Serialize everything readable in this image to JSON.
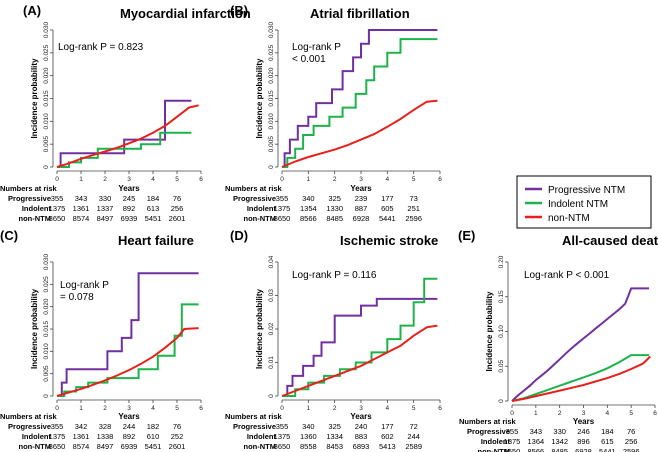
{
  "legend": {
    "entries": [
      {
        "name": "Progressive NTM",
        "color": "#7030a0"
      },
      {
        "name": "Indolent NTM",
        "color": "#1db34a"
      },
      {
        "name": "non-NTM",
        "color": "#e8201c"
      }
    ]
  },
  "risk_table": {
    "header": "Numbers at risk",
    "years_label": "Years",
    "groups": [
      "Progressive",
      "Indolent",
      "non-NTM"
    ]
  },
  "chart_data": [
    {
      "type": "line",
      "panel_label": "(A)",
      "title": "Myocardial infarction",
      "xlabel": "Years",
      "ylabel": "Incidence probability",
      "annotation": "Log-rank P = 0.823",
      "xlim": [
        0,
        6
      ],
      "ylim": [
        0,
        0.03
      ],
      "xticks": [
        "0",
        "1",
        "2",
        "3",
        "4",
        "5",
        "6"
      ],
      "yticks": [
        "0",
        "0.005",
        "0.010",
        "0.015",
        "0.020",
        "0.025",
        "0.030"
      ],
      "series": [
        {
          "name": "Progressive NTM",
          "x": [
            0,
            0.15,
            0.15,
            2.8,
            2.8,
            4.5,
            4.5,
            5.6
          ],
          "y": [
            0,
            0,
            0.003,
            0.003,
            0.006,
            0.006,
            0.0145,
            0.0145
          ]
        },
        {
          "name": "Indolent NTM",
          "x": [
            0,
            0.5,
            0.5,
            1.0,
            1.0,
            1.7,
            1.7,
            3.5,
            3.5,
            4.3,
            4.3,
            5.6
          ],
          "y": [
            0,
            0,
            0.001,
            0.001,
            0.002,
            0.002,
            0.004,
            0.004,
            0.005,
            0.005,
            0.0075,
            0.0075
          ]
        },
        {
          "name": "non-NTM",
          "x": [
            0,
            0.5,
            1,
            1.5,
            2,
            2.5,
            3,
            3.5,
            4,
            4.5,
            5,
            5.5,
            5.9
          ],
          "y": [
            0,
            0.0008,
            0.0018,
            0.0026,
            0.0034,
            0.0042,
            0.0052,
            0.0062,
            0.0075,
            0.009,
            0.011,
            0.013,
            0.0135
          ]
        }
      ],
      "risk": {
        "years": [
          "0",
          "1",
          "2",
          "3",
          "4",
          "5"
        ],
        "rows": [
          [
            "355",
            "343",
            "330",
            "245",
            "184",
            "76"
          ],
          [
            "1375",
            "1361",
            "1337",
            "892",
            "613",
            "256"
          ],
          [
            "8650",
            "8574",
            "8497",
            "6939",
            "5451",
            "2601"
          ]
        ]
      }
    },
    {
      "type": "line",
      "panel_label": "(B)",
      "title": "Atrial fibrillation",
      "xlabel": "Years",
      "ylabel": "Incidence probability",
      "annotation": "Log-rank P\n< 0.001",
      "xlim": [
        0,
        6
      ],
      "ylim": [
        0,
        0.03
      ],
      "xticks": [
        "0",
        "1",
        "2",
        "3",
        "4",
        "5",
        "6"
      ],
      "yticks": [
        "0",
        "0.005",
        "0.010",
        "0.015",
        "0.020",
        "0.025",
        "0.030"
      ],
      "series": [
        {
          "name": "Progressive NTM",
          "x": [
            0,
            0.1,
            0.1,
            0.3,
            0.3,
            0.6,
            0.6,
            1.0,
            1.0,
            1.3,
            1.3,
            1.9,
            1.9,
            2.3,
            2.3,
            2.7,
            2.7,
            3.0,
            3.0,
            3.3,
            3.3,
            5.9
          ],
          "y": [
            0,
            0,
            0.003,
            0.003,
            0.006,
            0.006,
            0.009,
            0.009,
            0.011,
            0.011,
            0.014,
            0.014,
            0.017,
            0.017,
            0.021,
            0.021,
            0.024,
            0.024,
            0.027,
            0.027,
            0.03,
            0.03
          ]
        },
        {
          "name": "Indolent NTM",
          "x": [
            0,
            0.2,
            0.2,
            0.5,
            0.5,
            0.8,
            0.8,
            1.2,
            1.2,
            1.8,
            1.8,
            2.3,
            2.3,
            2.8,
            2.8,
            3.2,
            3.2,
            3.5,
            3.5,
            4.0,
            4.0,
            4.5,
            4.5,
            5.9
          ],
          "y": [
            0,
            0,
            0.002,
            0.002,
            0.004,
            0.004,
            0.007,
            0.007,
            0.009,
            0.009,
            0.011,
            0.011,
            0.013,
            0.013,
            0.016,
            0.016,
            0.019,
            0.019,
            0.022,
            0.022,
            0.025,
            0.025,
            0.028,
            0.028
          ]
        },
        {
          "name": "non-NTM",
          "x": [
            0,
            0.5,
            1,
            1.5,
            2,
            2.5,
            3,
            3.5,
            4,
            4.5,
            5,
            5.5,
            5.9
          ],
          "y": [
            0,
            0.0012,
            0.0022,
            0.003,
            0.0038,
            0.0048,
            0.006,
            0.0072,
            0.0088,
            0.0105,
            0.0125,
            0.0143,
            0.0145
          ]
        }
      ],
      "risk": {
        "years": [
          "0",
          "1",
          "2",
          "3",
          "4",
          "5"
        ],
        "rows": [
          [
            "355",
            "340",
            "325",
            "239",
            "177",
            "73"
          ],
          [
            "1375",
            "1354",
            "1330",
            "887",
            "605",
            "251"
          ],
          [
            "8650",
            "8566",
            "8485",
            "6928",
            "5441",
            "2596"
          ]
        ]
      }
    },
    {
      "type": "line",
      "panel_label": "(C)",
      "title": "Heart failure",
      "xlabel": "Years",
      "ylabel": "Incidence probability",
      "annotation": "Log-rank P\n= 0.078",
      "xlim": [
        0,
        6
      ],
      "ylim": [
        0,
        0.03
      ],
      "xticks": [
        "0",
        "1",
        "2",
        "3",
        "4",
        "5",
        "6"
      ],
      "yticks": [
        "0",
        "0.005",
        "0.010",
        "0.015",
        "0.020",
        "0.025",
        "0.030"
      ],
      "series": [
        {
          "name": "Progressive NTM",
          "x": [
            0,
            0.2,
            0.2,
            0.4,
            0.4,
            2.1,
            2.1,
            2.7,
            2.7,
            3.1,
            3.1,
            3.4,
            3.4,
            5.9
          ],
          "y": [
            0,
            0,
            0.003,
            0.003,
            0.006,
            0.006,
            0.01,
            0.01,
            0.013,
            0.013,
            0.017,
            0.017,
            0.0275,
            0.0275
          ]
        },
        {
          "name": "Indolent NTM",
          "x": [
            0,
            0.3,
            0.3,
            0.8,
            0.8,
            1.3,
            1.3,
            2.1,
            2.1,
            3.4,
            3.4,
            4.2,
            4.2,
            4.9,
            4.9,
            5.2,
            5.2,
            5.9
          ],
          "y": [
            0,
            0,
            0.001,
            0.001,
            0.002,
            0.002,
            0.003,
            0.003,
            0.004,
            0.004,
            0.006,
            0.006,
            0.009,
            0.009,
            0.0135,
            0.0135,
            0.0205,
            0.0205
          ]
        },
        {
          "name": "non-NTM",
          "x": [
            0,
            0.5,
            1,
            1.5,
            2,
            2.5,
            3,
            3.5,
            4,
            4.5,
            5,
            5.3,
            5.9
          ],
          "y": [
            0,
            0.0008,
            0.0016,
            0.0025,
            0.0035,
            0.0046,
            0.0058,
            0.0072,
            0.0088,
            0.0108,
            0.013,
            0.015,
            0.0152
          ]
        }
      ],
      "risk": {
        "years": [
          "0",
          "1",
          "2",
          "3",
          "4",
          "5"
        ],
        "rows": [
          [
            "355",
            "342",
            "328",
            "244",
            "182",
            "76"
          ],
          [
            "1375",
            "1361",
            "1338",
            "892",
            "610",
            "252"
          ],
          [
            "8650",
            "8574",
            "8497",
            "6939",
            "5451",
            "2601"
          ]
        ]
      }
    },
    {
      "type": "line",
      "panel_label": "(D)",
      "title": "Ischemic stroke",
      "xlabel": "Years",
      "ylabel": "Incidence probability",
      "annotation": "Log-rank P = 0.116",
      "xlim": [
        0,
        6
      ],
      "ylim": [
        0,
        0.04
      ],
      "xticks": [
        "0",
        "1",
        "2",
        "3",
        "4",
        "5",
        "6"
      ],
      "yticks": [
        "0",
        "0.01",
        "0.02",
        "0.03",
        "0.04"
      ],
      "series": [
        {
          "name": "Progressive NTM",
          "x": [
            0,
            0.2,
            0.2,
            0.4,
            0.4,
            0.8,
            0.8,
            1.2,
            1.2,
            1.5,
            1.5,
            2.0,
            2.0,
            3.0,
            3.0,
            3.6,
            3.6,
            5.9
          ],
          "y": [
            0,
            0,
            0.003,
            0.003,
            0.006,
            0.006,
            0.009,
            0.009,
            0.012,
            0.012,
            0.016,
            0.016,
            0.024,
            0.024,
            0.027,
            0.027,
            0.029,
            0.029
          ]
        },
        {
          "name": "Indolent NTM",
          "x": [
            0,
            0.5,
            0.5,
            1.0,
            1.0,
            1.6,
            1.6,
            2.2,
            2.2,
            2.8,
            2.8,
            3.4,
            3.4,
            4.0,
            4.0,
            4.5,
            4.5,
            5.0,
            5.0,
            5.4,
            5.4,
            5.9
          ],
          "y": [
            0,
            0,
            0.002,
            0.002,
            0.004,
            0.004,
            0.006,
            0.006,
            0.008,
            0.008,
            0.01,
            0.01,
            0.013,
            0.013,
            0.017,
            0.017,
            0.021,
            0.021,
            0.028,
            0.028,
            0.035,
            0.035
          ]
        },
        {
          "name": "non-NTM",
          "x": [
            0,
            0.5,
            1,
            1.5,
            2,
            2.5,
            3,
            3.5,
            4,
            4.5,
            5,
            5.5,
            5.9
          ],
          "y": [
            0,
            0.0015,
            0.003,
            0.0045,
            0.006,
            0.0075,
            0.009,
            0.011,
            0.013,
            0.015,
            0.018,
            0.0205,
            0.021
          ]
        }
      ],
      "risk": {
        "years": [
          "0",
          "1",
          "2",
          "3",
          "4",
          "5"
        ],
        "rows": [
          [
            "355",
            "340",
            "325",
            "240",
            "177",
            "72"
          ],
          [
            "1375",
            "1360",
            "1334",
            "883",
            "602",
            "244"
          ],
          [
            "8650",
            "8558",
            "8453",
            "6893",
            "5413",
            "2589"
          ]
        ]
      }
    },
    {
      "type": "line",
      "panel_label": "(E)",
      "title": "All-caused death",
      "xlabel": "Years",
      "ylabel": "Incidence probability",
      "annotation": "Log-rank P < 0.001",
      "xlim": [
        0,
        6
      ],
      "ylim": [
        0,
        0.2
      ],
      "xticks": [
        "0",
        "1",
        "2",
        "3",
        "4",
        "5",
        "6"
      ],
      "yticks": [
        "0",
        "0.05",
        "0.10",
        "0.15",
        "0.20"
      ],
      "series": [
        {
          "name": "Progressive NTM",
          "x": [
            0,
            0.25,
            0.5,
            0.75,
            1,
            1.25,
            1.5,
            1.75,
            2,
            2.25,
            2.5,
            2.75,
            3,
            3.25,
            3.5,
            3.75,
            4,
            4.25,
            4.5,
            4.75,
            5,
            5.75
          ],
          "y": [
            0,
            0.008,
            0.015,
            0.022,
            0.03,
            0.037,
            0.044,
            0.052,
            0.06,
            0.068,
            0.076,
            0.083,
            0.09,
            0.097,
            0.104,
            0.111,
            0.118,
            0.125,
            0.132,
            0.14,
            0.162,
            0.162
          ]
        },
        {
          "name": "Indolent NTM",
          "x": [
            0,
            0.5,
            1,
            1.5,
            2,
            2.5,
            3,
            3.5,
            4,
            4.5,
            5,
            5.75
          ],
          "y": [
            0,
            0.004,
            0.01,
            0.016,
            0.022,
            0.028,
            0.034,
            0.04,
            0.047,
            0.056,
            0.066,
            0.066
          ]
        },
        {
          "name": "non-NTM",
          "x": [
            0,
            0.5,
            1,
            1.5,
            2,
            2.5,
            3,
            3.5,
            4,
            4.5,
            5,
            5.5,
            5.8
          ],
          "y": [
            0,
            0.003,
            0.007,
            0.011,
            0.015,
            0.019,
            0.023,
            0.028,
            0.033,
            0.039,
            0.046,
            0.054,
            0.064
          ]
        }
      ],
      "risk": {
        "years": [
          "0",
          "1",
          "2",
          "3",
          "4",
          "5"
        ],
        "rows": [
          [
            "355",
            "343",
            "330",
            "246",
            "184",
            "76"
          ],
          [
            "1375",
            "1364",
            "1342",
            "896",
            "615",
            "256"
          ],
          [
            "8650",
            "8566",
            "8485",
            "6928",
            "5441",
            "2596"
          ]
        ]
      }
    }
  ]
}
